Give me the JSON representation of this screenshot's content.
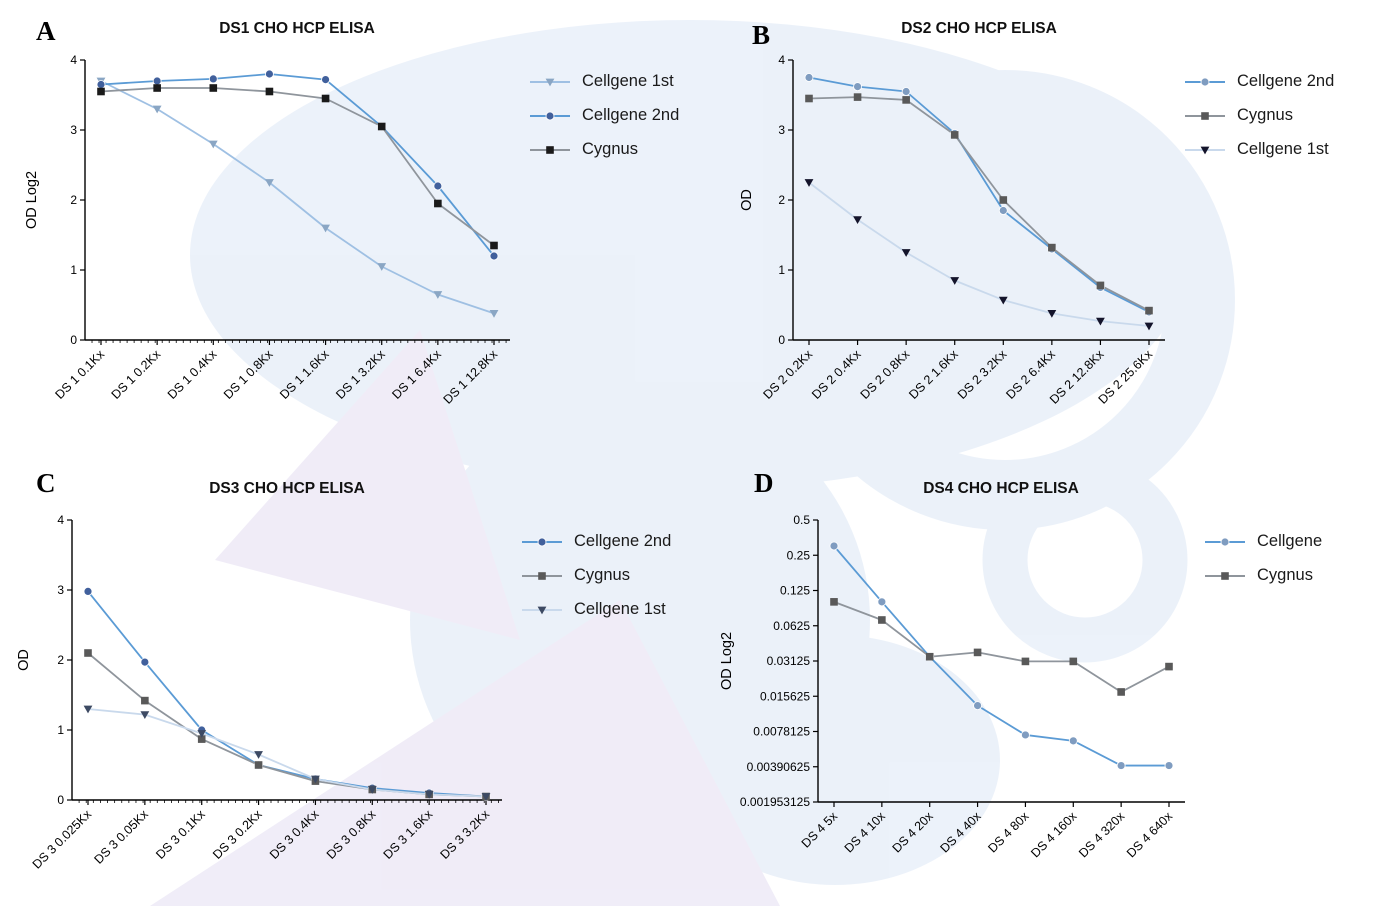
{
  "colors": {
    "watermark_blue": "#dce7f5",
    "watermark_purple": "#e4def2",
    "axis": "#000000"
  },
  "chart_data": [
    {
      "type": "line",
      "panel": "A",
      "title": "DS1 CHO HCP ELISA",
      "xlabel": "",
      "ylabel": "OD Log2",
      "yscale": "linear",
      "ylim": [
        0,
        4
      ],
      "yticks": [
        0,
        1,
        2,
        3,
        4
      ],
      "ytick_labels": [
        "0",
        "1",
        "2",
        "3",
        "4"
      ],
      "grid": false,
      "legend_position": "right",
      "categories": [
        "DS 1 0.1Kx",
        "DS 1 0.2Kx",
        "DS 1 0.4Kx",
        "DS 1 0.8Kx",
        "DS 1 1.6Kx",
        "DS 1 3.2Kx",
        "DS 1 6.4Kx",
        "DS 1 12.8Kx"
      ],
      "series": [
        {
          "name": "Cellgene 1st",
          "marker": "triangle-down",
          "line_color": "#9fc0e3",
          "marker_color": "#8aa6c4",
          "values": [
            3.7,
            3.3,
            2.8,
            2.25,
            1.6,
            1.05,
            0.65,
            0.38
          ]
        },
        {
          "name": "Cellgene 2nd",
          "marker": "circle",
          "line_color": "#5b9bd5",
          "marker_color": "#41609c",
          "values": [
            3.65,
            3.7,
            3.73,
            3.8,
            3.72,
            3.05,
            2.2,
            1.2
          ]
        },
        {
          "name": "Cygnus",
          "marker": "square",
          "line_color": "#8f959c",
          "marker_color": "#1a1a1a",
          "values": [
            3.55,
            3.6,
            3.6,
            3.55,
            3.45,
            3.05,
            1.95,
            1.35
          ]
        }
      ]
    },
    {
      "type": "line",
      "panel": "B",
      "title": "DS2 CHO HCP ELISA",
      "xlabel": "",
      "ylabel": "OD",
      "yscale": "linear",
      "ylim": [
        0,
        4
      ],
      "yticks": [
        0,
        1,
        2,
        3,
        4
      ],
      "ytick_labels": [
        "0",
        "1",
        "2",
        "3",
        "4"
      ],
      "grid": false,
      "legend_position": "right",
      "categories": [
        "DS 2 0.2Kx",
        "DS 2 0.4Kx",
        "DS 2 0.8Kx",
        "DS 2 1.6Kx",
        "DS 2 3.2Kx",
        "DS 2 6.4Kx",
        "DS 2 12.8Kx",
        "DS 2 25.6Kx"
      ],
      "series": [
        {
          "name": "Cellgene 2nd",
          "marker": "circle",
          "line_color": "#5b9bd5",
          "marker_color": "#7f9cc0",
          "values": [
            3.75,
            3.62,
            3.55,
            2.95,
            1.85,
            1.3,
            0.75,
            0.4
          ]
        },
        {
          "name": "Cygnus",
          "marker": "square",
          "line_color": "#8f959c",
          "marker_color": "#595959",
          "values": [
            3.45,
            3.47,
            3.43,
            2.93,
            2.0,
            1.32,
            0.78,
            0.42
          ]
        },
        {
          "name": "Cellgene 1st",
          "marker": "triangle-down",
          "line_color": "#c9d9ec",
          "marker_color": "#14142b",
          "values": [
            2.25,
            1.72,
            1.25,
            0.85,
            0.57,
            0.38,
            0.27,
            0.2
          ]
        }
      ]
    },
    {
      "type": "line",
      "panel": "C",
      "title": "DS3 CHO HCP ELISA",
      "xlabel": "",
      "ylabel": "OD",
      "yscale": "linear",
      "ylim": [
        0,
        4
      ],
      "yticks": [
        0,
        1,
        2,
        3,
        4
      ],
      "ytick_labels": [
        "0",
        "1",
        "2",
        "3",
        "4"
      ],
      "grid": false,
      "legend_position": "right",
      "categories": [
        "DS 3 0.025Kx",
        "DS 3 0.05Kx",
        "DS 3 0.1Kx",
        "DS 3 0.2Kx",
        "DS 3 0.4Kx",
        "DS 3 0.8Kx",
        "DS 3 1.6Kx",
        "DS 3 3.2Kx"
      ],
      "series": [
        {
          "name": "Cellgene 2nd",
          "marker": "circle",
          "line_color": "#5b9bd5",
          "marker_color": "#41609c",
          "values": [
            2.98,
            1.97,
            1.0,
            0.5,
            0.3,
            0.17,
            0.1,
            0.05
          ]
        },
        {
          "name": "Cygnus",
          "marker": "square",
          "line_color": "#8f959c",
          "marker_color": "#595959",
          "values": [
            2.1,
            1.42,
            0.87,
            0.5,
            0.27,
            0.15,
            0.08,
            0.05
          ]
        },
        {
          "name": "Cellgene 1st",
          "marker": "triangle-down",
          "line_color": "#c9d9ec",
          "marker_color": "#3d4a63",
          "values": [
            1.3,
            1.22,
            0.95,
            0.65,
            0.3,
            0.15,
            0.08,
            0.05
          ]
        }
      ]
    },
    {
      "type": "line",
      "panel": "D",
      "title": "DS4 CHO HCP ELISA",
      "xlabel": "",
      "ylabel": "OD Log2",
      "yscale": "log2",
      "ylim": [
        0.001953125,
        0.5
      ],
      "yticks": [
        0.5,
        0.25,
        0.125,
        0.0625,
        0.03125,
        0.015625,
        0.0078125,
        0.00390625,
        0.001953125
      ],
      "ytick_labels": [
        "0.5",
        "0.25",
        "0.125",
        "0.0625",
        "0.03125",
        "0.015625",
        "0.0078125",
        "0.00390625",
        "0.001953125"
      ],
      "grid": false,
      "legend_position": "right",
      "categories": [
        "DS 4 5x",
        "DS 4 10x",
        "DS 4 20x",
        "DS 4 40x",
        "DS 4 80x",
        "DS 4 160x",
        "DS 4 320x",
        "DS 4 640x"
      ],
      "series": [
        {
          "name": "Cellgene",
          "marker": "circle",
          "line_color": "#5b9bd5",
          "marker_color": "#7f9cc0",
          "values": [
            0.3,
            0.1,
            0.034,
            0.013,
            0.0073,
            0.0065,
            0.004,
            0.004
          ]
        },
        {
          "name": "Cygnus",
          "marker": "square",
          "line_color": "#8f959c",
          "marker_color": "#595959",
          "values": [
            0.1,
            0.07,
            0.034,
            0.037,
            0.031,
            0.031,
            0.017,
            0.028
          ]
        }
      ]
    }
  ]
}
